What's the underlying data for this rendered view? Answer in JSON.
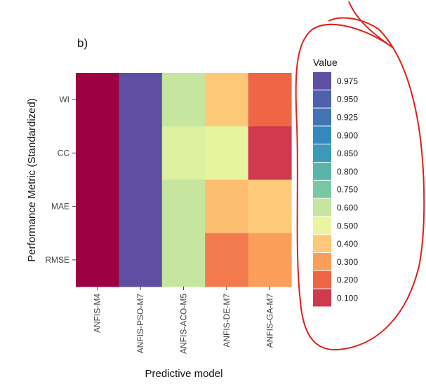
{
  "chart_data": {
    "type": "heatmap",
    "panel_label": "b)",
    "xlabel": "Predictive model",
    "ylabel": "Performance Metric (Standardized)",
    "x_categories": [
      "ANFIS-M4",
      "ANFIS-PSO-M7",
      "ANFIS-ACO-M5",
      "ANFIS-DE-M7",
      "ANFIS-GA-M7"
    ],
    "y_categories": [
      "WI",
      "CC",
      "MAE",
      "RMSE"
    ],
    "cells": [
      [
        0.05,
        0.99,
        0.6,
        0.4,
        0.2
      ],
      [
        0.05,
        0.99,
        0.55,
        0.52,
        0.12
      ],
      [
        0.05,
        0.99,
        0.6,
        0.35,
        0.42
      ],
      [
        0.05,
        0.99,
        0.6,
        0.25,
        0.3
      ]
    ],
    "legend": {
      "title": "Value",
      "entries": [
        {
          "label": "0.975",
          "color": "#5e4fa2"
        },
        {
          "label": "0.950",
          "color": "#4e61ae"
        },
        {
          "label": "0.925",
          "color": "#4273b3"
        },
        {
          "label": "0.900",
          "color": "#3488bc"
        },
        {
          "label": "0.850",
          "color": "#3a9ab7"
        },
        {
          "label": "0.800",
          "color": "#5ab4a9"
        },
        {
          "label": "0.750",
          "color": "#7ac7a4"
        },
        {
          "label": "0.600",
          "color": "#c6e59f"
        },
        {
          "label": "0.500",
          "color": "#ebf59d"
        },
        {
          "label": "0.400",
          "color": "#fdc979"
        },
        {
          "label": "0.300",
          "color": "#fb9e5a"
        },
        {
          "label": "0.200",
          "color": "#ee6646"
        },
        {
          "label": "0.100",
          "color": "#d0394f"
        }
      ]
    },
    "cell_colors": [
      [
        "#9e0142",
        "#5e4fa2",
        "#c6e59f",
        "#fdc979",
        "#ee6646"
      ],
      [
        "#9e0142",
        "#5e4fa2",
        "#dcf0a0",
        "#e6f49d",
        "#d0394f"
      ],
      [
        "#9e0142",
        "#5e4fa2",
        "#c6e59f",
        "#fdbe72",
        "#fdcb7a"
      ],
      [
        "#9e0142",
        "#5e4fa2",
        "#c6e59f",
        "#f37a4d",
        "#fb9e5a"
      ]
    ],
    "annotation_color": "#e0201a"
  }
}
